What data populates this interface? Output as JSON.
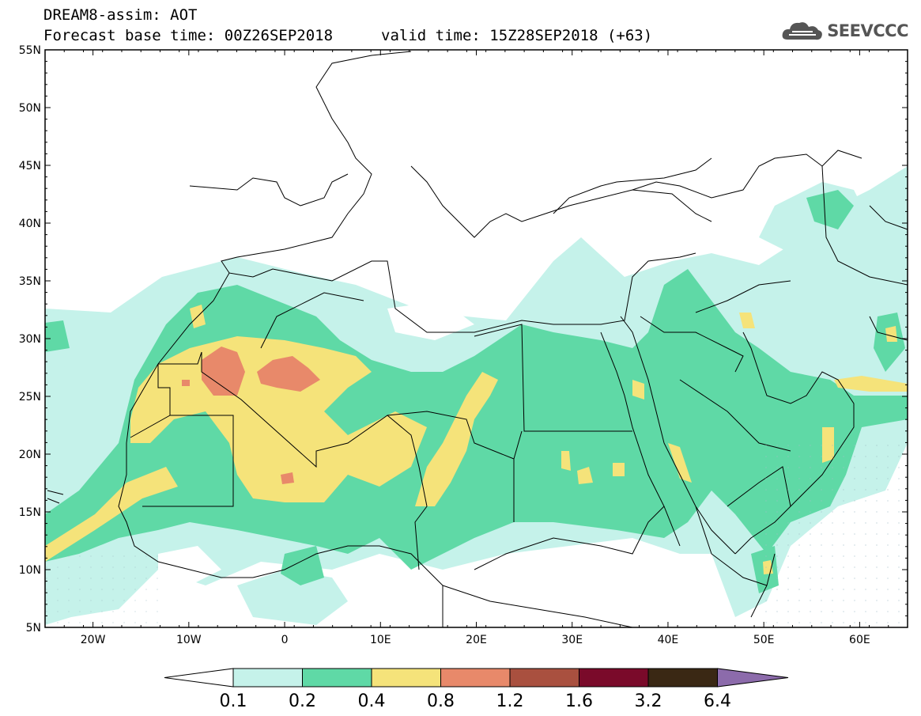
{
  "header": {
    "line1": "DREAM8-assim: AOT",
    "line2_base": "Forecast base time: 00Z26SEP2018",
    "line2_valid": "valid time: 15Z28SEP2018 (+63)",
    "logo_text": "SEEVCCC",
    "logo_icon": "cloud-logo-icon"
  },
  "map": {
    "lon_range": [
      -25,
      65
    ],
    "lat_range": [
      5,
      55
    ],
    "lat_ticks": [
      "55N",
      "50N",
      "45N",
      "40N",
      "35N",
      "30N",
      "25N",
      "20N",
      "15N",
      "10N",
      "5N"
    ],
    "lat_values": [
      55,
      50,
      45,
      40,
      35,
      30,
      25,
      20,
      15,
      10,
      5
    ],
    "lon_ticks": [
      "20W",
      "10W",
      "0",
      "10E",
      "20E",
      "30E",
      "40E",
      "50E",
      "60E"
    ],
    "lon_values": [
      -20,
      -10,
      0,
      10,
      20,
      30,
      40,
      50,
      60
    ]
  },
  "colorbar": {
    "levels": [
      "0.1",
      "0.2",
      "0.4",
      "0.8",
      "1.2",
      "1.6",
      "3.2",
      "6.4"
    ],
    "colors": [
      "#c5f2ea",
      "#5fd9a6",
      "#f5e37a",
      "#e8896a",
      "#a9503f",
      "#7a0a2a",
      "#3a2814",
      "#8c6bab"
    ],
    "under_color": "#ffffff"
  }
}
